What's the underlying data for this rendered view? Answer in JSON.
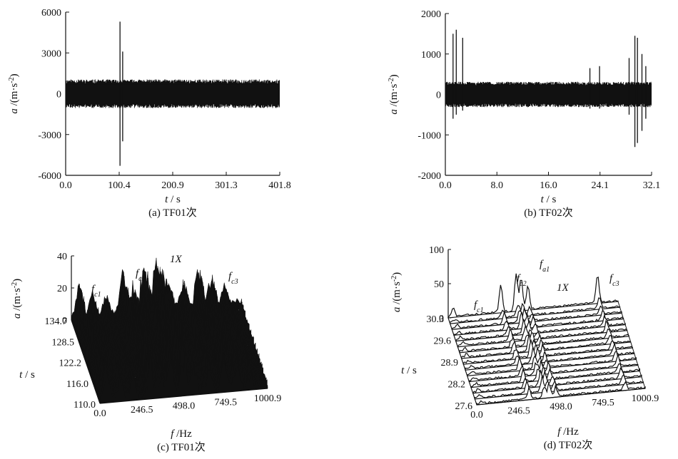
{
  "chart_data": [
    {
      "panel": "a",
      "type": "line",
      "caption": "(a) TF01次",
      "xlabel": {
        "var": "t",
        "unit": " / s"
      },
      "ylabel": {
        "var": "a",
        "unit": " /(m·s",
        "sup": "-2",
        "close": ")"
      },
      "xlim": [
        0.0,
        401.8
      ],
      "ylim": [
        -6000,
        6000
      ],
      "xticks": [
        "0.0",
        "100.4",
        "200.9",
        "301.3",
        "401.8"
      ],
      "yticks": [
        "6000",
        "3000",
        "0",
        "-3000",
        "-6000"
      ],
      "band": {
        "x": [
          0,
          401.8
        ],
        "upper": 1000,
        "lower": -1000
      },
      "spikes": [
        {
          "x": 102.0,
          "min": -5300,
          "max": 5300
        },
        {
          "x": 107.0,
          "min": -3500,
          "max": 3100
        }
      ]
    },
    {
      "panel": "b",
      "type": "line",
      "caption": "(b) TF02次",
      "xlabel": {
        "var": "t",
        "unit": " / s"
      },
      "ylabel": {
        "var": "a",
        "unit": " /(m·s",
        "sup": "-2",
        "close": ")"
      },
      "xlim": [
        0.0,
        32.1
      ],
      "ylim": [
        -2000,
        2000
      ],
      "xticks": [
        "0.0",
        "8.0",
        "16.0",
        "24.1",
        "32.1"
      ],
      "yticks": [
        "2000",
        "1000",
        "0",
        "-1000",
        "-2000"
      ],
      "band": {
        "x": [
          0,
          32.1
        ],
        "upper": 300,
        "lower": -300
      },
      "spikes": [
        {
          "x": 1.2,
          "min": -600,
          "max": 1500
        },
        {
          "x": 1.7,
          "min": -500,
          "max": 1600
        },
        {
          "x": 2.7,
          "min": -400,
          "max": 1400
        },
        {
          "x": 22.5,
          "min": -350,
          "max": 650
        },
        {
          "x": 24.0,
          "min": -350,
          "max": 700
        },
        {
          "x": 28.6,
          "min": -500,
          "max": 900
        },
        {
          "x": 29.5,
          "min": -1300,
          "max": 1450
        },
        {
          "x": 29.9,
          "min": -1200,
          "max": 1400
        },
        {
          "x": 30.6,
          "min": -900,
          "max": 1000
        },
        {
          "x": 31.2,
          "min": -600,
          "max": 700
        }
      ]
    },
    {
      "panel": "c",
      "type": "waterfall",
      "caption": "(c) TF01次",
      "xlabel": {
        "var": "f",
        "unit": " /Hz"
      },
      "ylabel": {
        "var": "t",
        "unit": " / s"
      },
      "zlabel": {
        "var": "a",
        "unit": " /(m·s",
        "sup": "-2",
        "close": ")"
      },
      "xticks": [
        "0.0",
        "246.5",
        "498.0",
        "749.5",
        "1000.9"
      ],
      "yticks": [
        "134.7",
        "128.5",
        "122.2",
        "116.0",
        "110.0"
      ],
      "zticks": [
        "40",
        "20",
        "0"
      ],
      "xlim": [
        0,
        1000.9
      ],
      "zlim": [
        0,
        40
      ],
      "annotations": [
        {
          "text": "f",
          "sub": "c1"
        },
        {
          "text": "f",
          "sub": "c2"
        },
        {
          "text": "1X",
          "sub": ""
        },
        {
          "text": "f",
          "sub": "c3"
        }
      ],
      "peaks": [
        {
          "f": 40,
          "z": 22
        },
        {
          "f": 120,
          "z": 16
        },
        {
          "f": 200,
          "z": 14
        },
        {
          "f": 300,
          "z": 28
        },
        {
          "f": 360,
          "z": 18
        },
        {
          "f": 420,
          "z": 32
        },
        {
          "f": 498,
          "z": 38
        },
        {
          "f": 560,
          "z": 22
        },
        {
          "f": 650,
          "z": 20
        },
        {
          "f": 740,
          "z": 26
        },
        {
          "f": 820,
          "z": 22
        },
        {
          "f": 900,
          "z": 12
        }
      ],
      "traces": 60
    },
    {
      "panel": "d",
      "type": "waterfall",
      "caption": "(d) TF02次",
      "xlabel": {
        "var": "f",
        "unit": " /Hz"
      },
      "ylabel": {
        "var": "t",
        "unit": " / s"
      },
      "zlabel": {
        "var": "a",
        "unit": " /(m·s",
        "sup": "-2",
        "close": ")"
      },
      "xticks": [
        "0.0",
        "246.5",
        "498.0",
        "749.5",
        "1000.9"
      ],
      "yticks": [
        "30.3",
        "29.6",
        "28.9",
        "28.2",
        "27.6"
      ],
      "zticks": [
        "100",
        "50",
        "0"
      ],
      "xlim": [
        0,
        1000.9
      ],
      "zlim": [
        0,
        100
      ],
      "annotations": [
        {
          "text": "f",
          "sub": "c1"
        },
        {
          "text": "f",
          "sub": "c2"
        },
        {
          "text": "f",
          "sub": "a1"
        },
        {
          "text": "1X",
          "sub": ""
        },
        {
          "text": "f",
          "sub": "c3"
        }
      ],
      "peaks": [
        {
          "f": 30,
          "z": 12
        },
        {
          "f": 310,
          "z": 40
        },
        {
          "f": 400,
          "z": 55
        },
        {
          "f": 430,
          "z": 48
        },
        {
          "f": 470,
          "z": 35
        },
        {
          "f": 880,
          "z": 40
        }
      ],
      "traces": 16
    }
  ]
}
